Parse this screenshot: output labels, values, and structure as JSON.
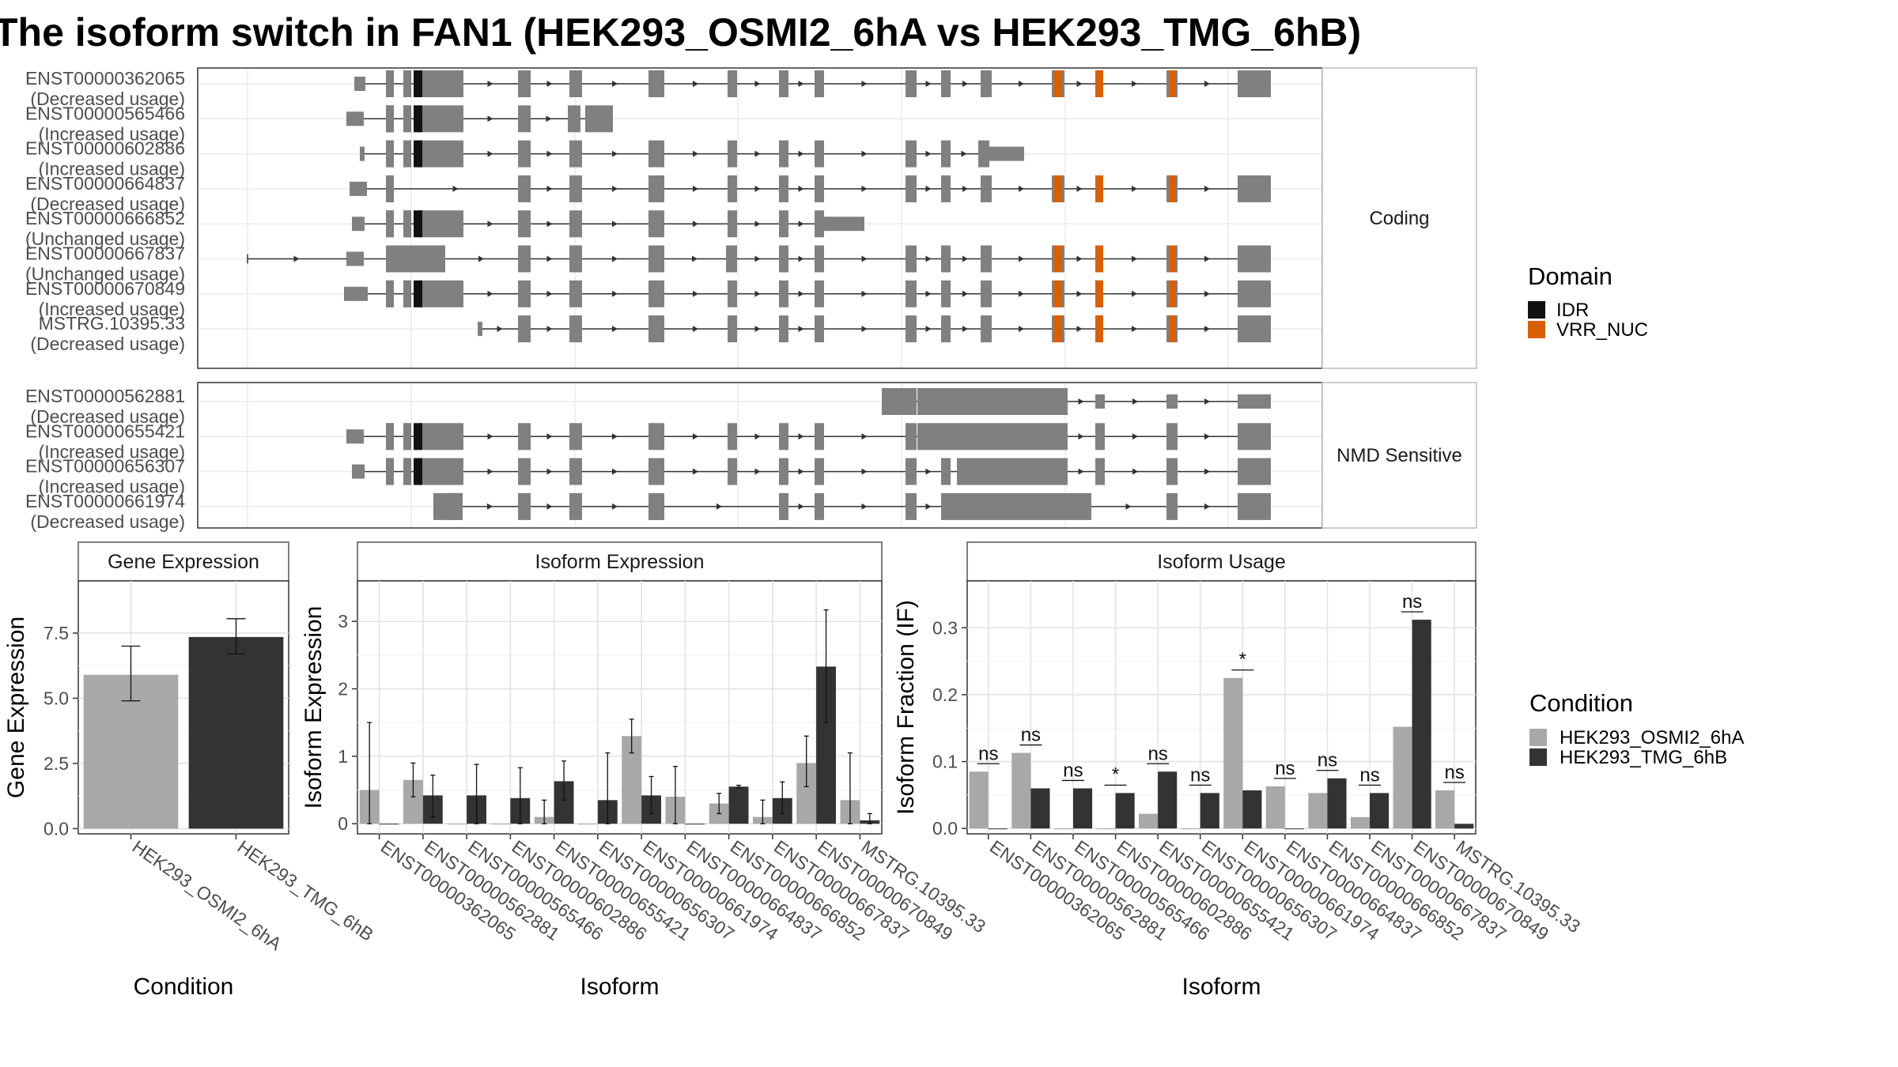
{
  "title": "The isoform switch in FAN1 (HEK293_OSMI2_6hA vs HEK293_TMG_6hB)",
  "colors": {
    "exon": "#808080",
    "idr": "#111111",
    "vrr_nuc": "#d95f02",
    "cond_a": "#a8a8a8",
    "cond_b": "#333333"
  },
  "structure": {
    "panels": [
      {
        "label": "Coding",
        "transcripts": [
          {
            "id": "ENST00000362065",
            "usage": "(Decreased usage)"
          },
          {
            "id": "ENST00000565466",
            "usage": "(Increased usage)"
          },
          {
            "id": "ENST00000602886",
            "usage": "(Increased usage)"
          },
          {
            "id": "ENST00000664837",
            "usage": "(Decreased usage)"
          },
          {
            "id": "ENST00000666852",
            "usage": "(Unchanged usage)"
          },
          {
            "id": "ENST00000667837",
            "usage": "(Unchanged usage)"
          },
          {
            "id": "ENST00000670849",
            "usage": "(Increased usage)"
          },
          {
            "id": "MSTRG.10395.33",
            "usage": "(Decreased usage)"
          }
        ]
      },
      {
        "label": "NMD Sensitive",
        "transcripts": [
          {
            "id": "ENST00000562881",
            "usage": "(Decreased usage)"
          },
          {
            "id": "ENST00000655421",
            "usage": "(Increased usage)"
          },
          {
            "id": "ENST00000656307",
            "usage": "(Increased usage)"
          },
          {
            "id": "ENST00000661974",
            "usage": "(Decreased usage)"
          }
        ]
      }
    ]
  },
  "legend_domain": {
    "title": "Domain",
    "items": [
      {
        "label": "IDR",
        "color": "#111111"
      },
      {
        "label": "VRR_NUC",
        "color": "#d95f02"
      }
    ]
  },
  "legend_condition": {
    "title": "Condition",
    "items": [
      {
        "label": "HEK293_OSMI2_6hA",
        "color": "#a8a8a8"
      },
      {
        "label": "HEK293_TMG_6hB",
        "color": "#333333"
      }
    ]
  },
  "chart_data": [
    {
      "type": "bar",
      "title": "Gene Expression",
      "xlabel": "Condition",
      "ylabel": "Gene Expression",
      "categories": [
        "HEK293_OSMI2_6hA",
        "HEK293_TMG_6hB"
      ],
      "values": [
        5.9,
        7.35
      ],
      "err_low": [
        4.9,
        6.7
      ],
      "err_high": [
        7.0,
        8.05
      ],
      "ylim": [
        -0.2,
        9.5
      ],
      "yticks": [
        "0.0",
        "2.5",
        "5.0",
        "7.5"
      ],
      "ytick_values": [
        0,
        2.5,
        5,
        7.5
      ]
    },
    {
      "type": "bar",
      "title": "Isoform Expression",
      "xlabel": "Isoform",
      "ylabel": "Isoform Expression",
      "categories": [
        "ENST00000362065",
        "ENST00000562881",
        "ENST00000565466",
        "ENST00000602886",
        "ENST00000655421",
        "ENST00000656307",
        "ENST00000661974",
        "ENST00000664837",
        "ENST00000666852",
        "ENST00000667837",
        "ENST00000670849",
        "MSTRG.10395.33"
      ],
      "series": [
        {
          "name": "HEK293_OSMI2_6hA",
          "values": [
            0.5,
            0.65,
            0.0,
            0.0,
            0.1,
            0.0,
            1.3,
            0.4,
            0.3,
            0.1,
            0.9,
            0.35
          ],
          "err_low": [
            0.0,
            0.4,
            0.0,
            0.0,
            0.0,
            0.0,
            1.05,
            0.0,
            0.15,
            0.0,
            0.55,
            0.0
          ],
          "err_high": [
            1.5,
            0.9,
            0.0,
            0.0,
            0.35,
            0.0,
            1.55,
            0.85,
            0.45,
            0.35,
            1.3,
            1.05
          ]
        },
        {
          "name": "HEK293_TMG_6hB",
          "values": [
            0.0,
            0.42,
            0.42,
            0.38,
            0.63,
            0.35,
            0.42,
            0.0,
            0.55,
            0.38,
            2.33,
            0.05
          ],
          "err_low": [
            0.0,
            0.1,
            0.0,
            0.0,
            0.35,
            0.0,
            0.15,
            0.0,
            0.53,
            0.15,
            1.5,
            0.0
          ],
          "err_high": [
            0.0,
            0.72,
            0.88,
            0.83,
            0.93,
            1.05,
            0.7,
            0.0,
            0.57,
            0.62,
            3.17,
            0.15
          ]
        }
      ],
      "ylim": [
        -0.15,
        3.6
      ],
      "yticks": [
        "0",
        "1",
        "2",
        "3"
      ],
      "ytick_values": [
        0,
        1,
        2,
        3
      ]
    },
    {
      "type": "bar",
      "title": "Isoform Usage",
      "xlabel": "Isoform",
      "ylabel": "Isoform Fraction (IF)",
      "categories": [
        "ENST00000362065",
        "ENST00000562881",
        "ENST00000565466",
        "ENST00000602886",
        "ENST00000655421",
        "ENST00000656307",
        "ENST00000661974",
        "ENST00000664837",
        "ENST00000666852",
        "ENST00000667837",
        "ENST00000670849",
        "MSTRG.10395.33"
      ],
      "series": [
        {
          "name": "HEK293_OSMI2_6hA",
          "values": [
            0.085,
            0.113,
            0.0,
            0.0,
            0.022,
            0.0,
            0.225,
            0.063,
            0.053,
            0.017,
            0.152,
            0.057
          ]
        },
        {
          "name": "HEK293_TMG_6hB",
          "values": [
            0.0,
            0.06,
            0.06,
            0.053,
            0.085,
            0.053,
            0.057,
            0.0,
            0.075,
            0.053,
            0.312,
            0.007
          ]
        }
      ],
      "significance": [
        "ns",
        "ns",
        "ns",
        "*",
        "ns",
        "ns",
        "*",
        "ns",
        "ns",
        "ns",
        "ns",
        "ns"
      ],
      "ylim": [
        -0.008,
        0.37
      ],
      "yticks": [
        "0.0",
        "0.1",
        "0.2",
        "0.3"
      ],
      "ytick_values": [
        0,
        0.1,
        0.2,
        0.3
      ]
    }
  ]
}
